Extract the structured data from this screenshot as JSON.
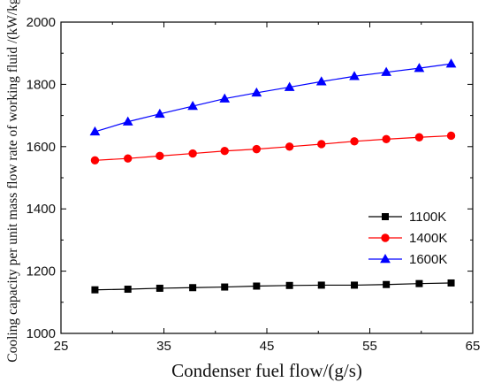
{
  "chart_data": {
    "type": "line",
    "title": "",
    "xlabel": "Condenser fuel flow/(g/s)",
    "ylabel": "Cooling capacity per unit mass flow rate of working fluid /(kW/kg)",
    "xlim": [
      25,
      65
    ],
    "ylim": [
      1000,
      2000
    ],
    "x_ticks": [
      "25",
      "35",
      "45",
      "55",
      "65"
    ],
    "y_ticks": [
      "1000",
      "1200",
      "1400",
      "1600",
      "1800",
      "2000"
    ],
    "x_minor_step": 5,
    "y_minor_step": 100,
    "grid": false,
    "legend_position": "center-right",
    "x": [
      28.3,
      31.5,
      34.6,
      37.8,
      40.9,
      44.0,
      47.2,
      50.3,
      53.5,
      56.6,
      59.8,
      62.9
    ],
    "series": [
      {
        "name": "1100K",
        "marker": "square",
        "color": "#000000",
        "values": [
          1140,
          1142,
          1145,
          1147,
          1149,
          1152,
          1154,
          1155,
          1155,
          1157,
          1160,
          1162
        ]
      },
      {
        "name": "1400K",
        "marker": "circle",
        "color": "#ff0000",
        "values": [
          1556,
          1562,
          1570,
          1578,
          1586,
          1592,
          1600,
          1608,
          1617,
          1624,
          1630,
          1635
        ]
      },
      {
        "name": "1600K",
        "marker": "triangle",
        "color": "#0000ff",
        "values": [
          1648,
          1680,
          1705,
          1730,
          1754,
          1773,
          1791,
          1809,
          1826,
          1839,
          1852,
          1866
        ]
      }
    ]
  }
}
